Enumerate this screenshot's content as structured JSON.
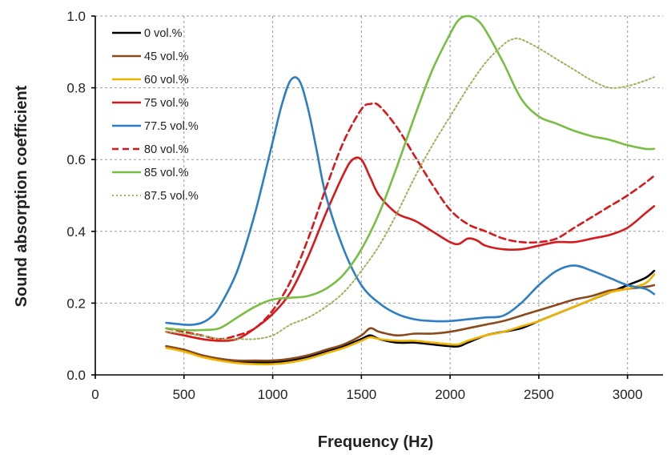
{
  "chart_data": {
    "type": "line",
    "title": "",
    "xlabel": "Frequency (Hz)",
    "ylabel": "Sound absorption coefficient",
    "xlim": [
      0,
      3200
    ],
    "ylim": [
      0,
      1.0
    ],
    "x_ticks": [
      "0",
      "500",
      "1000",
      "1500",
      "2000",
      "2500",
      "3000"
    ],
    "x_tick_values": [
      0,
      500,
      1000,
      1500,
      2000,
      2500,
      3000
    ],
    "y_ticks": [
      "0.0",
      "0.2",
      "0.4",
      "0.6",
      "0.8",
      "1.0"
    ],
    "y_tick_values": [
      0,
      0.2,
      0.4,
      0.6,
      0.8,
      1.0
    ],
    "grid": true,
    "legend_position": "top-left",
    "series": [
      {
        "name": "0 vol.%",
        "color": "#000000",
        "dash": "solid",
        "x": [
          400,
          500,
          600,
          700,
          800,
          900,
          1000,
          1100,
          1200,
          1300,
          1400,
          1500,
          1550,
          1600,
          1700,
          1800,
          1900,
          2000,
          2050,
          2100,
          2200,
          2300,
          2400,
          2500,
          2600,
          2700,
          2800,
          2900,
          3000,
          3100,
          3150
        ],
        "y": [
          0.08,
          0.07,
          0.055,
          0.045,
          0.038,
          0.035,
          0.035,
          0.04,
          0.05,
          0.065,
          0.08,
          0.1,
          0.11,
          0.1,
          0.09,
          0.09,
          0.085,
          0.08,
          0.08,
          0.09,
          0.11,
          0.12,
          0.13,
          0.15,
          0.17,
          0.19,
          0.21,
          0.23,
          0.25,
          0.27,
          0.29
        ]
      },
      {
        "name": "45 vol.%",
        "color": "#8B4A1C",
        "dash": "solid",
        "x": [
          400,
          500,
          600,
          700,
          800,
          900,
          1000,
          1100,
          1200,
          1300,
          1400,
          1500,
          1550,
          1600,
          1700,
          1800,
          1900,
          2000,
          2100,
          2200,
          2300,
          2400,
          2500,
          2600,
          2700,
          2800,
          2900,
          3000,
          3100,
          3150
        ],
        "y": [
          0.08,
          0.07,
          0.055,
          0.045,
          0.04,
          0.04,
          0.04,
          0.045,
          0.055,
          0.07,
          0.085,
          0.11,
          0.13,
          0.12,
          0.11,
          0.115,
          0.115,
          0.12,
          0.13,
          0.14,
          0.15,
          0.165,
          0.18,
          0.195,
          0.21,
          0.22,
          0.235,
          0.24,
          0.245,
          0.25
        ]
      },
      {
        "name": "60 vol.%",
        "color": "#F0B400",
        "dash": "solid",
        "x": [
          400,
          500,
          600,
          700,
          800,
          900,
          1000,
          1100,
          1200,
          1300,
          1400,
          1500,
          1550,
          1600,
          1700,
          1800,
          1900,
          2000,
          2050,
          2100,
          2200,
          2300,
          2400,
          2500,
          2600,
          2700,
          2800,
          2900,
          3000,
          3100,
          3150
        ],
        "y": [
          0.075,
          0.065,
          0.05,
          0.04,
          0.033,
          0.03,
          0.03,
          0.035,
          0.045,
          0.06,
          0.075,
          0.095,
          0.105,
          0.1,
          0.095,
          0.095,
          0.09,
          0.085,
          0.085,
          0.095,
          0.11,
          0.12,
          0.135,
          0.15,
          0.17,
          0.19,
          0.21,
          0.23,
          0.24,
          0.255,
          0.28
        ]
      },
      {
        "name": "75 vol.%",
        "color": "#D7191C",
        "dash": "solid",
        "x": [
          400,
          500,
          600,
          700,
          800,
          900,
          1000,
          1100,
          1200,
          1300,
          1400,
          1450,
          1500,
          1550,
          1600,
          1700,
          1800,
          1900,
          2000,
          2050,
          2100,
          2150,
          2200,
          2300,
          2400,
          2500,
          2600,
          2700,
          2800,
          2900,
          3000,
          3100,
          3150
        ],
        "y": [
          0.12,
          0.11,
          0.1,
          0.095,
          0.1,
          0.13,
          0.17,
          0.23,
          0.33,
          0.45,
          0.56,
          0.6,
          0.6,
          0.55,
          0.5,
          0.45,
          0.43,
          0.4,
          0.37,
          0.365,
          0.38,
          0.375,
          0.36,
          0.35,
          0.35,
          0.36,
          0.37,
          0.37,
          0.38,
          0.39,
          0.41,
          0.45,
          0.47
        ]
      },
      {
        "name": "77.5 vol.%",
        "color": "#2E7EC3",
        "dash": "solid",
        "x": [
          400,
          500,
          550,
          600,
          650,
          700,
          800,
          900,
          1000,
          1050,
          1100,
          1150,
          1200,
          1250,
          1300,
          1400,
          1500,
          1600,
          1700,
          1800,
          1900,
          2000,
          2100,
          2200,
          2300,
          2400,
          2500,
          2600,
          2700,
          2800,
          2900,
          3000,
          3100,
          3150
        ],
        "y": [
          0.145,
          0.14,
          0.14,
          0.145,
          0.16,
          0.19,
          0.29,
          0.45,
          0.65,
          0.75,
          0.82,
          0.82,
          0.74,
          0.62,
          0.5,
          0.35,
          0.25,
          0.2,
          0.17,
          0.155,
          0.15,
          0.15,
          0.155,
          0.16,
          0.165,
          0.2,
          0.25,
          0.29,
          0.305,
          0.29,
          0.27,
          0.25,
          0.24,
          0.225
        ]
      },
      {
        "name": "80 vol.%",
        "color": "#D7191C",
        "dash": "8 5",
        "x": [
          400,
          500,
          600,
          700,
          800,
          900,
          1000,
          1100,
          1200,
          1300,
          1400,
          1500,
          1550,
          1600,
          1700,
          1800,
          1900,
          2000,
          2100,
          2200,
          2300,
          2400,
          2500,
          2600,
          2700,
          2800,
          2900,
          3000,
          3100,
          3150
        ],
        "y": [
          0.13,
          0.12,
          0.11,
          0.1,
          0.11,
          0.13,
          0.18,
          0.26,
          0.38,
          0.52,
          0.65,
          0.74,
          0.755,
          0.75,
          0.69,
          0.61,
          0.53,
          0.46,
          0.42,
          0.4,
          0.38,
          0.37,
          0.37,
          0.38,
          0.41,
          0.44,
          0.47,
          0.5,
          0.535,
          0.555
        ]
      },
      {
        "name": "85 vol.%",
        "color": "#78BE42",
        "dash": "solid",
        "x": [
          400,
          500,
          600,
          700,
          800,
          900,
          1000,
          1100,
          1200,
          1300,
          1400,
          1500,
          1600,
          1700,
          1800,
          1900,
          2000,
          2050,
          2100,
          2150,
          2200,
          2300,
          2400,
          2500,
          2600,
          2700,
          2800,
          2900,
          3000,
          3100,
          3150
        ],
        "y": [
          0.13,
          0.125,
          0.125,
          0.13,
          0.16,
          0.19,
          0.21,
          0.215,
          0.22,
          0.24,
          0.28,
          0.35,
          0.45,
          0.58,
          0.72,
          0.85,
          0.95,
          0.99,
          1.0,
          0.99,
          0.96,
          0.87,
          0.77,
          0.72,
          0.7,
          0.68,
          0.665,
          0.655,
          0.64,
          0.63,
          0.63
        ]
      },
      {
        "name": "87.5 vol.%",
        "color": "#9DB35A",
        "dash": "2 3",
        "x": [
          400,
          500,
          600,
          700,
          800,
          900,
          1000,
          1100,
          1200,
          1300,
          1400,
          1500,
          1600,
          1700,
          1800,
          1900,
          2000,
          2100,
          2200,
          2300,
          2350,
          2400,
          2500,
          2600,
          2700,
          2800,
          2900,
          3000,
          3100,
          3150
        ],
        "y": [
          0.12,
          0.115,
          0.11,
          0.1,
          0.1,
          0.1,
          0.11,
          0.14,
          0.16,
          0.19,
          0.23,
          0.29,
          0.36,
          0.45,
          0.55,
          0.64,
          0.72,
          0.8,
          0.87,
          0.92,
          0.935,
          0.935,
          0.91,
          0.88,
          0.85,
          0.82,
          0.8,
          0.805,
          0.82,
          0.83
        ]
      }
    ]
  }
}
